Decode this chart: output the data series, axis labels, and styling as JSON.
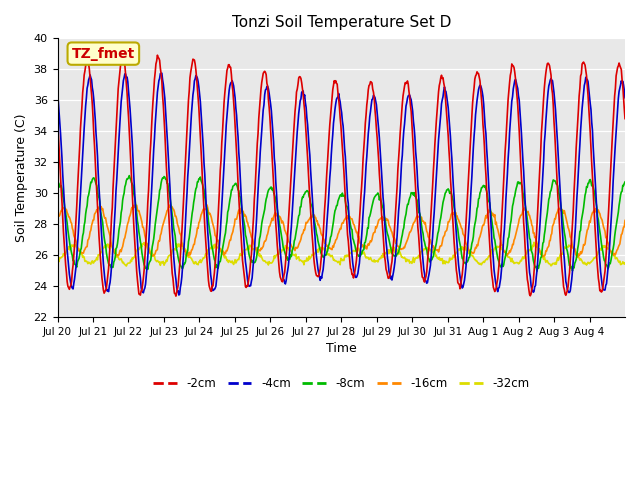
{
  "title": "Tonzi Soil Temperature Set D",
  "xlabel": "Time",
  "ylabel": "Soil Temperature (C)",
  "ylim": [
    22,
    40
  ],
  "yticks": [
    22,
    24,
    26,
    28,
    30,
    32,
    34,
    36,
    38,
    40
  ],
  "bg_color": "#e8e8e8",
  "annotation_text": "TZ_fmet",
  "series_colors": {
    "-2cm": "#dd0000",
    "-4cm": "#0000cc",
    "-8cm": "#00bb00",
    "-16cm": "#ff8800",
    "-32cm": "#dddd00"
  },
  "series_lw": 1.2,
  "n_days": 16,
  "samples_per_day": 48,
  "xtick_labels": [
    "Jul 20",
    "Jul 21",
    "Jul 22",
    "Jul 23",
    "Jul 24",
    "Jul 25",
    "Jul 26",
    "Jul 27",
    "Jul 28",
    "Jul 29",
    "Jul 30",
    "Jul 31",
    "Aug 1",
    "Aug 2",
    "Aug 3",
    "Aug 4"
  ],
  "depth_params": {
    "-2cm": {
      "base": 31.0,
      "amp": 7.0,
      "phase": 0.0,
      "amp_var": 0.6,
      "base_var": 0.3
    },
    "-4cm": {
      "base": 30.5,
      "amp": 6.5,
      "phase": 0.08,
      "amp_var": 0.5,
      "base_var": 0.25
    },
    "-8cm": {
      "base": 28.0,
      "amp": 2.5,
      "phase": 0.18,
      "amp_var": 0.4,
      "base_var": 0.2
    },
    "-16cm": {
      "base": 27.5,
      "amp": 1.3,
      "phase": 0.35,
      "amp_var": 0.25,
      "base_var": 0.15
    },
    "-32cm": {
      "base": 26.0,
      "amp": 0.5,
      "phase": 0.6,
      "amp_var": 0.1,
      "base_var": 0.08
    }
  }
}
